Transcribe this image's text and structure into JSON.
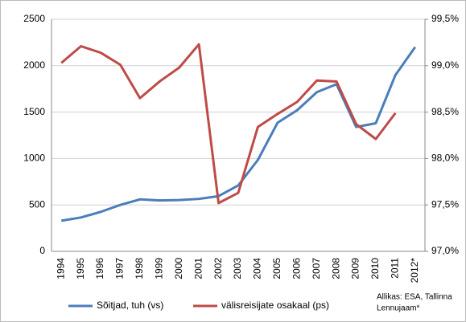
{
  "chart_data": {
    "type": "line",
    "categories": [
      "1994",
      "1995",
      "1996",
      "1997",
      "1998",
      "1999",
      "2000",
      "2001",
      "2002",
      "2003",
      "2004",
      "2005",
      "2006",
      "2007",
      "2008",
      "2009",
      "2010",
      "2011",
      "2012*"
    ],
    "series": [
      {
        "name": "Sõitjad, tuh (vs)",
        "color": "#4a7ebb",
        "values": [
          330,
          365,
          425,
          500,
          560,
          548,
          553,
          565,
          595,
          710,
          985,
          1385,
          1520,
          1715,
          1800,
          1340,
          1380,
          1900,
          2200
        ]
      },
      {
        "name": "välisreisijate osakaal (ps)",
        "color": "#be4b48",
        "axis": "y2",
        "values": [
          99.03,
          99.21,
          99.14,
          99.01,
          98.65,
          98.83,
          98.98,
          99.23,
          97.52,
          97.63,
          98.34,
          98.48,
          98.61,
          98.84,
          98.83,
          98.37,
          98.21,
          98.49,
          null
        ]
      }
    ],
    "ylim": [
      0,
      2500
    ],
    "yticks": [
      0,
      500,
      1000,
      1500,
      2000,
      2500
    ],
    "y2lim": [
      97.0,
      99.5
    ],
    "y2ticks": [
      {
        "value": 97.0,
        "label": "97,0%"
      },
      {
        "value": 97.5,
        "label": "97,5%"
      },
      {
        "value": 98.0,
        "label": "98,0%"
      },
      {
        "value": 98.5,
        "label": "98,5%"
      },
      {
        "value": 99.0,
        "label": "99,0%"
      },
      {
        "value": 99.5,
        "label": "99,5%"
      }
    ],
    "grid": true,
    "source": [
      "Allikas: ESA, Tallinna",
      "Lennujaam*"
    ]
  }
}
